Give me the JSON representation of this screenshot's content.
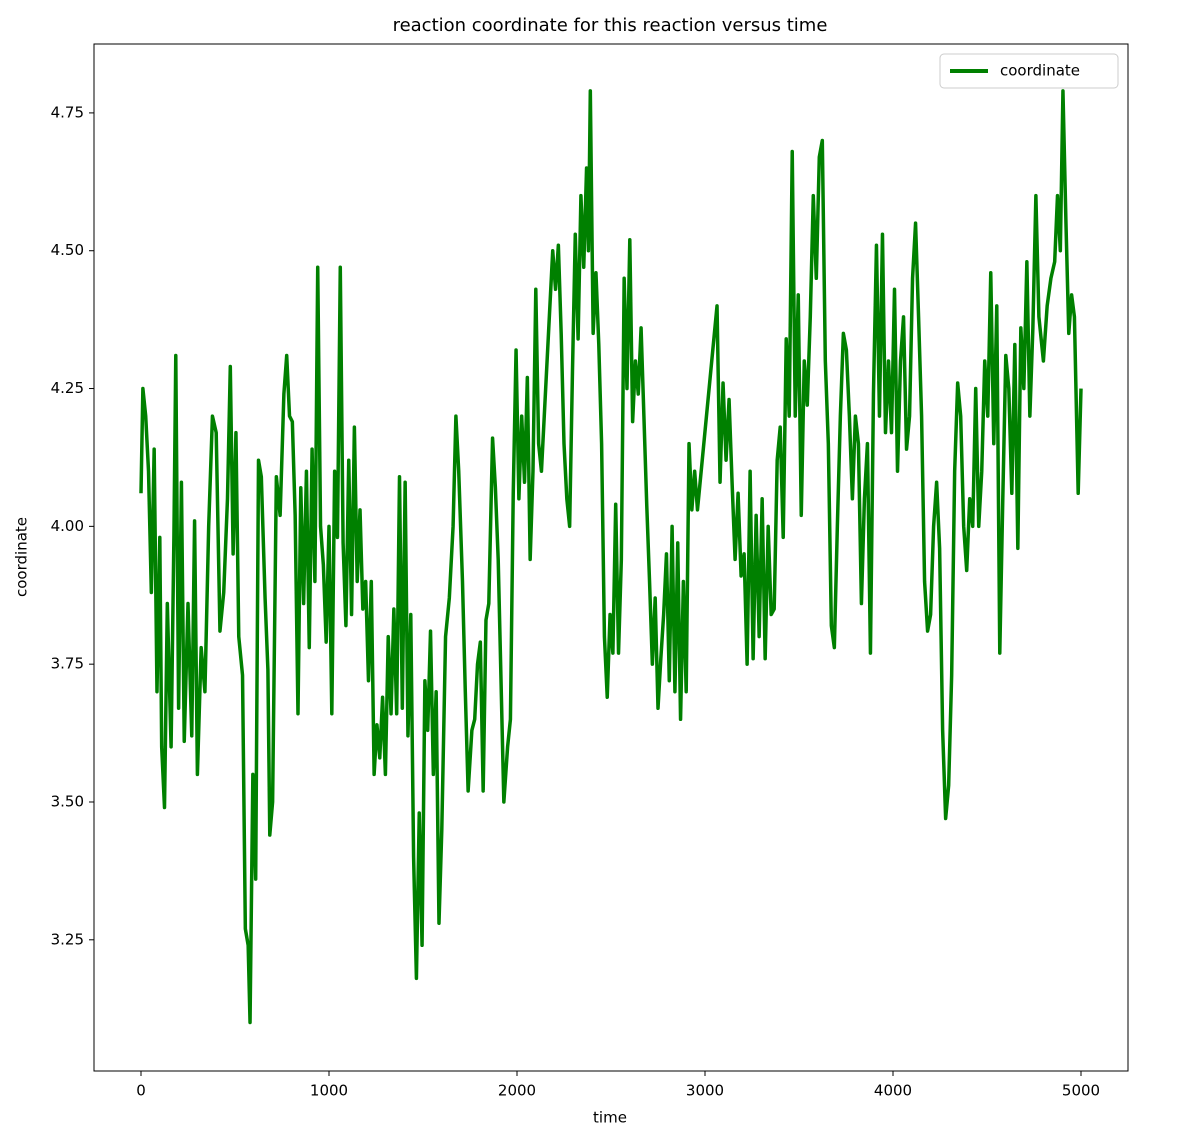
{
  "chart_data": {
    "type": "line",
    "title": "reaction coordinate for this reaction versus time",
    "xlabel": "time",
    "ylabel": "coordinate",
    "x": [
      0,
      10,
      25,
      40,
      55,
      70,
      85,
      100,
      110,
      125,
      140,
      160,
      175,
      185,
      200,
      215,
      230,
      250,
      270,
      285,
      300,
      320,
      340,
      360,
      380,
      400,
      420,
      440,
      460,
      475,
      490,
      505,
      520,
      540,
      555,
      570,
      580,
      595,
      610,
      625,
      640,
      660,
      675,
      685,
      700,
      720,
      740,
      760,
      775,
      790,
      805,
      820,
      835,
      850,
      865,
      880,
      895,
      910,
      925,
      940,
      955,
      970,
      985,
      1000,
      1015,
      1030,
      1045,
      1060,
      1075,
      1090,
      1105,
      1120,
      1135,
      1150,
      1165,
      1180,
      1195,
      1210,
      1225,
      1240,
      1255,
      1270,
      1285,
      1300,
      1315,
      1330,
      1345,
      1360,
      1375,
      1390,
      1405,
      1420,
      1435,
      1450,
      1465,
      1480,
      1495,
      1510,
      1525,
      1540,
      1555,
      1570,
      1585,
      1600,
      1620,
      1640,
      1660,
      1675,
      1690,
      1710,
      1725,
      1740,
      1760,
      1775,
      1790,
      1805,
      1820,
      1835,
      1850,
      1870,
      1885,
      1900,
      1915,
      1930,
      1950,
      1965,
      1980,
      1995,
      2010,
      2025,
      2040,
      2055,
      2070,
      2085,
      2100,
      2115,
      2130,
      2145,
      2160,
      2175,
      2190,
      2205,
      2220,
      2235,
      2250,
      2265,
      2280,
      2295,
      2310,
      2325,
      2340,
      2355,
      2370,
      2380,
      2390,
      2405,
      2420,
      2435,
      2450,
      2465,
      2480,
      2495,
      2510,
      2525,
      2540,
      2555,
      2570,
      2585,
      2600,
      2615,
      2630,
      2645,
      2660,
      2675,
      2690,
      2705,
      2720,
      2735,
      2750,
      2765,
      2780,
      2795,
      2810,
      2825,
      2840,
      2855,
      2870,
      2885,
      2900,
      2915,
      2930,
      2945,
      2960,
      3064,
      3080,
      3096,
      3112,
      3128,
      3144,
      3160,
      3176,
      3192,
      3208,
      3224,
      3240,
      3256,
      3272,
      3288,
      3304,
      3320,
      3336,
      3352,
      3368,
      3384,
      3400,
      3416,
      3432,
      3448,
      3464,
      3480,
      3496,
      3512,
      3528,
      3544,
      3560,
      3576,
      3592,
      3608,
      3624,
      3640,
      3656,
      3672,
      3688,
      3704,
      3720,
      3736,
      3752,
      3768,
      3784,
      3800,
      3816,
      3832,
      3848,
      3864,
      3880,
      3896,
      3912,
      3928,
      3944,
      3960,
      3976,
      3992,
      4008,
      4024,
      4040,
      4056,
      4072,
      4088,
      4104,
      4120,
      4136,
      4152,
      4168,
      4184,
      4200,
      4216,
      4232,
      4248,
      4264,
      4280,
      4296,
      4312,
      4328,
      4344,
      4360,
      4376,
      4392,
      4408,
      4424,
      4440,
      4456,
      4472,
      4488,
      4504,
      4520,
      4536,
      4552,
      4568,
      4584,
      4600,
      4616,
      4632,
      4648,
      4664,
      4680,
      4696,
      4712,
      4728,
      4744,
      4760,
      4776,
      4800,
      4820,
      4840,
      4860,
      4875,
      4890,
      4904,
      4920,
      4935,
      4950,
      4965,
      4985,
      5000
    ],
    "series": [
      {
        "name": "coordinate",
        "color": "#008000",
        "values": [
          4.06,
          4.25,
          4.2,
          4.1,
          3.88,
          4.14,
          3.7,
          3.98,
          3.6,
          3.49,
          3.86,
          3.6,
          3.98,
          4.31,
          3.67,
          4.08,
          3.61,
          3.86,
          3.62,
          4.01,
          3.55,
          3.78,
          3.7,
          4.0,
          4.2,
          4.17,
          3.81,
          3.88,
          4.05,
          4.29,
          3.95,
          4.17,
          3.8,
          3.73,
          3.27,
          3.24,
          3.1,
          3.55,
          3.36,
          4.12,
          4.09,
          3.87,
          3.74,
          3.44,
          3.5,
          4.09,
          4.02,
          4.24,
          4.31,
          4.2,
          4.19,
          4.02,
          3.66,
          4.07,
          3.86,
          4.1,
          3.78,
          4.14,
          3.9,
          4.47,
          4.0,
          3.93,
          3.79,
          4.0,
          3.66,
          4.1,
          3.98,
          4.47,
          3.97,
          3.82,
          4.12,
          3.84,
          4.18,
          3.9,
          4.03,
          3.85,
          3.9,
          3.72,
          3.9,
          3.55,
          3.64,
          3.58,
          3.69,
          3.55,
          3.8,
          3.66,
          3.85,
          3.66,
          4.09,
          3.67,
          4.08,
          3.62,
          3.84,
          3.4,
          3.18,
          3.48,
          3.24,
          3.72,
          3.63,
          3.81,
          3.55,
          3.7,
          3.28,
          3.45,
          3.8,
          3.87,
          4.0,
          4.2,
          4.1,
          3.9,
          3.7,
          3.52,
          3.63,
          3.65,
          3.75,
          3.79,
          3.52,
          3.83,
          3.86,
          4.16,
          4.07,
          3.94,
          3.72,
          3.5,
          3.6,
          3.65,
          4.06,
          4.32,
          4.05,
          4.2,
          4.08,
          4.27,
          3.94,
          4.1,
          4.43,
          4.15,
          4.1,
          4.2,
          4.3,
          4.4,
          4.5,
          4.43,
          4.51,
          4.35,
          4.15,
          4.05,
          4.0,
          4.28,
          4.53,
          4.34,
          4.6,
          4.47,
          4.65,
          4.5,
          4.79,
          4.35,
          4.46,
          4.33,
          4.15,
          3.8,
          3.69,
          3.84,
          3.77,
          4.04,
          3.77,
          3.94,
          4.45,
          4.25,
          4.52,
          4.19,
          4.3,
          4.24,
          4.36,
          4.2,
          4.04,
          3.9,
          3.75,
          3.87,
          3.67,
          3.76,
          3.84,
          3.95,
          3.72,
          4.0,
          3.7,
          3.97,
          3.65,
          3.9,
          3.7,
          4.15,
          4.03,
          4.1,
          4.03,
          4.4,
          4.08,
          4.26,
          4.12,
          4.23,
          4.08,
          3.94,
          4.06,
          3.91,
          3.95,
          3.75,
          4.1,
          3.76,
          4.02,
          3.8,
          4.05,
          3.76,
          4.0,
          3.84,
          3.85,
          4.12,
          4.18,
          3.98,
          4.34,
          4.2,
          4.68,
          4.2,
          4.42,
          4.02,
          4.3,
          4.22,
          4.38,
          4.6,
          4.45,
          4.67,
          4.7,
          4.3,
          4.15,
          3.82,
          3.78,
          4.0,
          4.2,
          4.35,
          4.32,
          4.2,
          4.05,
          4.2,
          4.15,
          3.86,
          4.05,
          4.15,
          3.77,
          4.24,
          4.51,
          4.2,
          4.53,
          4.17,
          4.3,
          4.17,
          4.43,
          4.1,
          4.3,
          4.38,
          4.14,
          4.2,
          4.45,
          4.55,
          4.38,
          4.2,
          3.9,
          3.81,
          3.84,
          4.0,
          4.08,
          3.96,
          3.63,
          3.47,
          3.53,
          3.73,
          4.1,
          4.26,
          4.2,
          4.0,
          3.92,
          4.05,
          4.0,
          4.25,
          4.0,
          4.1,
          4.3,
          4.2,
          4.46,
          4.15,
          4.4,
          3.77,
          4.05,
          4.31,
          4.25,
          4.06,
          4.33,
          3.96,
          4.36,
          4.25,
          4.48,
          4.2,
          4.36,
          4.6,
          4.38,
          4.3,
          4.4,
          4.45,
          4.48,
          4.6,
          4.5,
          4.79,
          4.55,
          4.35,
          4.42,
          4.38,
          4.06,
          4.25
        ]
      }
    ],
    "xlim": [
      -250,
      5250
    ],
    "xticks": [
      0,
      1000,
      2000,
      3000,
      4000,
      5000
    ],
    "ylim": [
      3.012,
      4.875
    ],
    "yticks": [
      {
        "value": 3.25,
        "label": "3.25"
      },
      {
        "value": 3.5,
        "label": "3.50"
      },
      {
        "value": 3.75,
        "label": "3.75"
      },
      {
        "value": 4.0,
        "label": "4.00"
      },
      {
        "value": 4.25,
        "label": "4.25"
      },
      {
        "value": 4.5,
        "label": "4.50"
      },
      {
        "value": 4.75,
        "label": "4.75"
      }
    ],
    "grid": false,
    "legend": "upper right"
  }
}
